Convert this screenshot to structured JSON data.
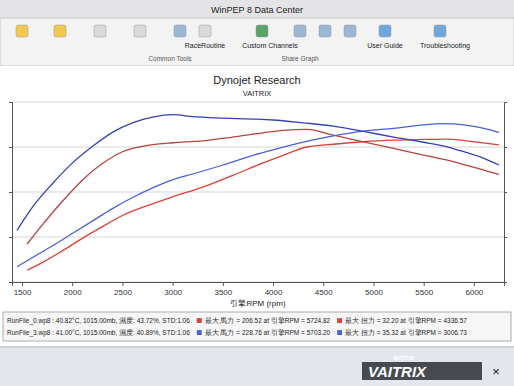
{
  "chart_data": {
    "type": "line",
    "title": "Dynojet Research",
    "subtitle": "VAITRIX",
    "x_label": "引擎RPM (rpm)",
    "xlim": [
      1400,
      6300
    ],
    "xticks": [
      1500,
      2000,
      2500,
      3000,
      3500,
      4000,
      4500,
      5000,
      5500,
      6000
    ],
    "ylim": [
      0,
      260
    ],
    "yticks": [
      0,
      65,
      130,
      195,
      260
    ],
    "y2lim": [
      0,
      38
    ],
    "y2ticks": [
      0,
      9.5,
      19,
      28.5,
      38
    ],
    "grid": true,
    "tick_labels": "x",
    "annotations": [
      "WinPEP 8 Data Center",
      "RaceRoutine",
      "Custom Channels",
      "User Guide",
      "Troubleshooting",
      "Common Tools",
      "Share Graph",
      "RunFile_0.wp8 : 40.82°C, 1015.00mb, 濕度: 43.72%, STD:1.06",
      "RunFile_3.wp8 : 41.00°C, 1015.00mb, 濕度: 40.89%, STD:1.06",
      "MOTOR",
      "VAITRIX",
      "×"
    ],
    "series": [
      {
        "name": "最大 馬力 = 206.52 at 引擎RPM = 5724.82",
        "color": "#d8423b",
        "axis": "y",
        "x": [
          1550,
          1700,
          1900,
          2100,
          2300,
          2500,
          2800,
          3000,
          3300,
          3600,
          3900,
          4100,
          4336.57,
          4600,
          4900,
          5200,
          5500,
          5724.82,
          5950,
          6150,
          6250
        ],
        "values": [
          17,
          28,
          45,
          63,
          80,
          96,
          113,
          123,
          137,
          154,
          172,
          183,
          195,
          199,
          202.6,
          204.8,
          205.9,
          206.52,
          203.6,
          200,
          198
        ]
      },
      {
        "name": "最大 扭力 = 32.20 at 引擎RPM = 4336.57",
        "color": "#b8443c",
        "axis": "y2",
        "x": [
          1550,
          1700,
          1900,
          2100,
          2300,
          2500,
          2800,
          3000,
          3300,
          3600,
          3900,
          4100,
          4336.57,
          4600,
          4900,
          5200,
          5500,
          5724.82,
          5950,
          6150,
          6250
        ],
        "values": [
          8,
          12,
          17,
          21.5,
          25,
          27.5,
          29,
          29.4,
          29.8,
          30.6,
          31.5,
          32.0,
          32.2,
          31.0,
          29.6,
          28.2,
          26.8,
          25.8,
          24.5,
          23.3,
          22.7
        ]
      },
      {
        "name": "最大 馬力 = 228.76 at 引擎RPM = 5703.20",
        "color": "#4a5fd8",
        "axis": "y",
        "x": [
          1450,
          1600,
          1800,
          2000,
          2200,
          2400,
          2600,
          2800,
          3006.73,
          3200,
          3500,
          3800,
          4000,
          4300,
          4600,
          4900,
          5200,
          5500,
          5703.2,
          5900,
          6100,
          6250
        ],
        "values": [
          22,
          35,
          52,
          70,
          88,
          106,
          122,
          136,
          148,
          156,
          169,
          183,
          191,
          202,
          211,
          218,
          222,
          227,
          228.76,
          227,
          222,
          216
        ]
      },
      {
        "name": "最大 扭力 = 35.32 at 引擎RPM = 3006.73",
        "color": "#3340b8",
        "axis": "y2",
        "x": [
          1450,
          1600,
          1800,
          2000,
          2200,
          2400,
          2600,
          2800,
          3006.73,
          3200,
          3500,
          3800,
          4000,
          4300,
          4600,
          4900,
          5200,
          5500,
          5703.2,
          5900,
          6100,
          6250
        ],
        "values": [
          10.9,
          15.7,
          20.7,
          25.1,
          28.6,
          31.6,
          33.6,
          34.8,
          35.32,
          34.9,
          34.6,
          34.4,
          34.2,
          33.6,
          32.9,
          31.8,
          30.6,
          29.5,
          28.7,
          27.5,
          26.1,
          24.7
        ]
      }
    ]
  }
}
